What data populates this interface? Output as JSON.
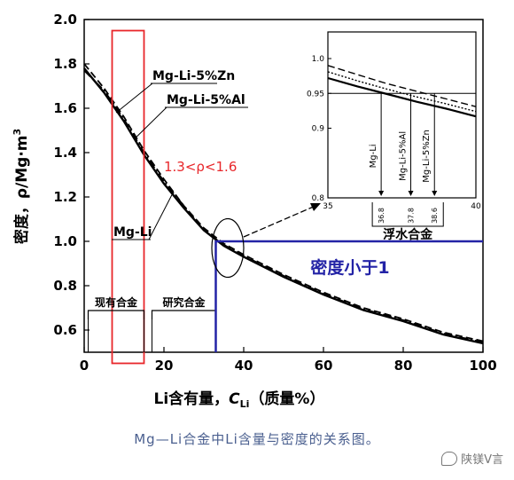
{
  "chart_data": {
    "type": "line",
    "xlabel": "Li含有量，",
    "xlabel_symbol": "C",
    "xlabel_sub": "Li",
    "xlabel_unit": "（质量%）",
    "ylabel": "密度，ρ/Mg·m",
    "ylabel_sup": "3",
    "xlim": [
      0,
      100
    ],
    "ylim": [
      0.5,
      2.0
    ],
    "xticks": [
      0,
      20,
      40,
      60,
      80,
      100
    ],
    "yticks": [
      0.6,
      0.8,
      1.0,
      1.2,
      1.4,
      1.6,
      1.8,
      2.0
    ],
    "series": [
      {
        "name": "Mg-Li",
        "style": "solid",
        "x": [
          0,
          5,
          10,
          15,
          20,
          25,
          30,
          35,
          40,
          50,
          60,
          70,
          80,
          90,
          100
        ],
        "y": [
          1.78,
          1.67,
          1.54,
          1.39,
          1.26,
          1.15,
          1.05,
          0.98,
          0.93,
          0.84,
          0.76,
          0.69,
          0.64,
          0.58,
          0.54
        ]
      },
      {
        "name": "Mg-Li-5%Zn",
        "style": "dashed",
        "x": [
          0,
          5,
          10,
          15,
          20,
          25,
          30,
          35,
          40,
          50,
          60,
          70,
          80,
          90,
          100
        ],
        "y": [
          1.8,
          1.69,
          1.56,
          1.41,
          1.28,
          1.16,
          1.06,
          0.99,
          0.94,
          0.85,
          0.77,
          0.7,
          0.65,
          0.59,
          0.55
        ]
      },
      {
        "name": "Mg-Li-5%Al",
        "style": "dashdot",
        "x": [
          0,
          5,
          10,
          15,
          20,
          25,
          30,
          35,
          40,
          50,
          60,
          70,
          80,
          90,
          100
        ],
        "y": [
          1.77,
          1.68,
          1.55,
          1.4,
          1.27,
          1.16,
          1.05,
          0.985,
          0.935,
          0.845,
          0.765,
          0.695,
          0.645,
          0.585,
          0.545
        ]
      }
    ],
    "annotations": {
      "density_range": "1.3<ρ<1.6",
      "label_zn": "Mg-Li-5%Zn",
      "label_al": "Mg-Li-5%Al",
      "label_mgli": "Mg-Li",
      "region_existing": "现有合金",
      "region_research": "研究合金",
      "density_less_than_1": "密度小于1",
      "floating_alloys": "浮水合金",
      "existing_range": [
        1,
        15
      ],
      "research_range": [
        17,
        33
      ],
      "boundary_x": 33,
      "boundary_y": 1.0,
      "red_box_x": [
        7,
        15
      ],
      "red_box_y": [
        0.45,
        1.95
      ]
    },
    "inset": {
      "xlim": [
        35,
        40
      ],
      "ylim": [
        0.8,
        1.0
      ],
      "xticks": [
        35,
        40
      ],
      "ytick_labels": [
        "1.0",
        "0.95",
        "0.9",
        "0.8"
      ],
      "yticks": [
        1.0,
        0.95,
        0.9,
        0.8
      ],
      "marker_labels": [
        "Mg-Li",
        "Mg-Li-5%Al",
        "Mg-Li-5%Zn"
      ],
      "crossing_values": [
        "36.8",
        "37.8",
        "38.6"
      ],
      "crossing_x": [
        36.8,
        37.8,
        38.6
      ],
      "series": [
        {
          "name": "Mg-Li",
          "style": "solid",
          "x": [
            35,
            36,
            37,
            38,
            39,
            40
          ],
          "y": [
            0.972,
            0.96,
            0.949,
            0.938,
            0.928,
            0.917
          ]
        },
        {
          "name": "Mg-Li-5%Al",
          "style": "dotted",
          "x": [
            35,
            36,
            37,
            38,
            39,
            40
          ],
          "y": [
            0.981,
            0.968,
            0.956,
            0.945,
            0.935,
            0.924
          ]
        },
        {
          "name": "Mg-Li-5%Zn",
          "style": "dashed",
          "x": [
            35,
            36,
            37,
            38,
            39,
            40
          ],
          "y": [
            0.99,
            0.977,
            0.964,
            0.953,
            0.942,
            0.931
          ]
        }
      ]
    }
  },
  "caption": "Mg—Li合金中Li含量与密度的关系图。",
  "watermark": "陕镁V言",
  "colors": {
    "red": "#e8262a",
    "blue": "#2323a6",
    "axis": "#000000",
    "caption": "#4a5f8f"
  }
}
